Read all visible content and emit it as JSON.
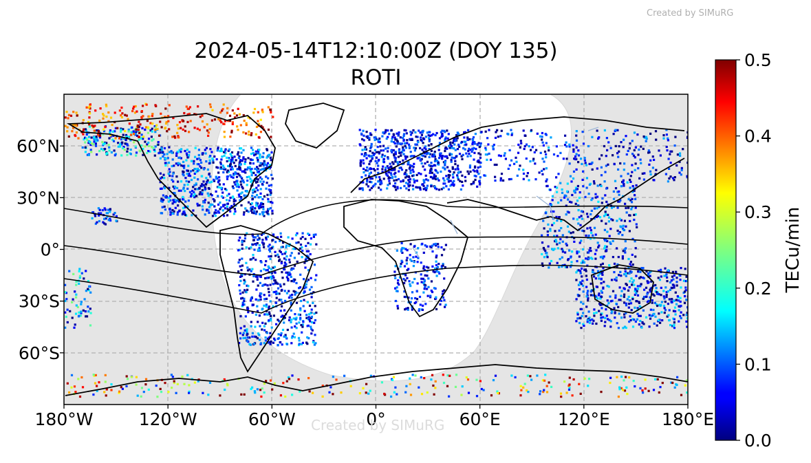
{
  "watermark_top": "Created by SIMuRG",
  "watermark_map": "Created by SIMuRG",
  "title_line1": "2024-05-14T12:10:00Z (DOY 135)",
  "title_line2": "ROTI",
  "map": {
    "projection": "equirectangular",
    "lon_range": [
      -180,
      180
    ],
    "lat_range": [
      -90,
      90
    ],
    "grid": true,
    "x_ticks": [
      {
        "value": -180,
        "label": "180°W"
      },
      {
        "value": -120,
        "label": "120°W"
      },
      {
        "value": -60,
        "label": "60°W"
      },
      {
        "value": 0,
        "label": "0°"
      },
      {
        "value": 60,
        "label": "60°E"
      },
      {
        "value": 120,
        "label": "120°E"
      },
      {
        "value": 180,
        "label": "180°E"
      }
    ],
    "y_ticks": [
      {
        "value": 60,
        "label": "60°N"
      },
      {
        "value": 30,
        "label": "30°N"
      },
      {
        "value": 0,
        "label": "0°"
      },
      {
        "value": -30,
        "label": "30°S"
      },
      {
        "value": -60,
        "label": "60°S"
      }
    ],
    "night_shading_color": "#e5e5e5",
    "day_color": "#ffffff"
  },
  "colorbar": {
    "label": "TECu/min",
    "min": 0.0,
    "max": 0.5,
    "colormap": "jet",
    "ticks": [
      {
        "value": 0.0,
        "label": "0.0"
      },
      {
        "value": 0.1,
        "label": "0.1"
      },
      {
        "value": 0.2,
        "label": "0.2"
      },
      {
        "value": 0.3,
        "label": "0.3"
      },
      {
        "value": 0.4,
        "label": "0.4"
      },
      {
        "value": 0.5,
        "label": "0.5"
      }
    ]
  }
}
